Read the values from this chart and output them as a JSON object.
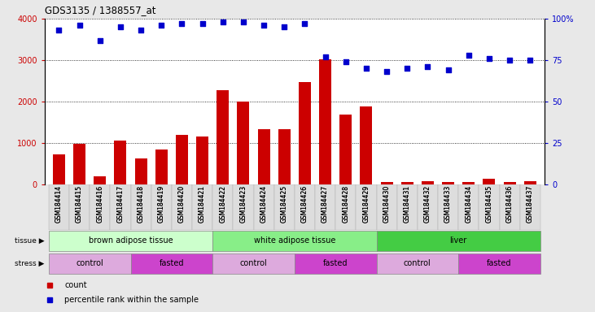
{
  "title": "GDS3135 / 1388557_at",
  "samples": [
    "GSM184414",
    "GSM184415",
    "GSM184416",
    "GSM184417",
    "GSM184418",
    "GSM184419",
    "GSM184420",
    "GSM184421",
    "GSM184422",
    "GSM184423",
    "GSM184424",
    "GSM184425",
    "GSM184426",
    "GSM184427",
    "GSM184428",
    "GSM184429",
    "GSM184430",
    "GSM184431",
    "GSM184432",
    "GSM184433",
    "GSM184434",
    "GSM184435",
    "GSM184436",
    "GSM184437"
  ],
  "counts": [
    730,
    980,
    200,
    1060,
    630,
    850,
    1190,
    1150,
    2280,
    2000,
    1330,
    1330,
    2480,
    3020,
    1680,
    1890,
    60,
    60,
    80,
    60,
    60,
    130,
    60,
    70
  ],
  "percentile": [
    93,
    96,
    87,
    95,
    93,
    96,
    97,
    97,
    98,
    98,
    96,
    95,
    97,
    77,
    74,
    70,
    68,
    70,
    71,
    69,
    78,
    76,
    75,
    75
  ],
  "bar_color": "#cc0000",
  "dot_color": "#0000cc",
  "ylim_left": [
    0,
    4000
  ],
  "ylim_right": [
    0,
    100
  ],
  "yticks_left": [
    0,
    1000,
    2000,
    3000,
    4000
  ],
  "yticks_right": [
    0,
    25,
    50,
    75,
    100
  ],
  "ytick_right_labels": [
    "0",
    "25",
    "50",
    "75",
    "100%"
  ],
  "tissue_groups": [
    {
      "label": "brown adipose tissue",
      "start": 0,
      "end": 7,
      "color": "#ccffcc"
    },
    {
      "label": "white adipose tissue",
      "start": 8,
      "end": 15,
      "color": "#88ee88"
    },
    {
      "label": "liver",
      "start": 16,
      "end": 23,
      "color": "#44cc44"
    }
  ],
  "stress_groups": [
    {
      "label": "control",
      "start": 0,
      "end": 3,
      "color": "#ddaadd"
    },
    {
      "label": "fasted",
      "start": 4,
      "end": 7,
      "color": "#cc44cc"
    },
    {
      "label": "control",
      "start": 8,
      "end": 11,
      "color": "#ddaadd"
    },
    {
      "label": "fasted",
      "start": 12,
      "end": 15,
      "color": "#cc44cc"
    },
    {
      "label": "control",
      "start": 16,
      "end": 19,
      "color": "#ddaadd"
    },
    {
      "label": "fasted",
      "start": 20,
      "end": 23,
      "color": "#cc44cc"
    }
  ],
  "legend_items": [
    {
      "label": "count",
      "color": "#cc0000"
    },
    {
      "label": "percentile rank within the sample",
      "color": "#0000cc"
    }
  ],
  "bg_color": "#e8e8e8",
  "plot_bg": "#ffffff",
  "fig_width": 7.31,
  "fig_height": 3.84,
  "dpi": 100
}
